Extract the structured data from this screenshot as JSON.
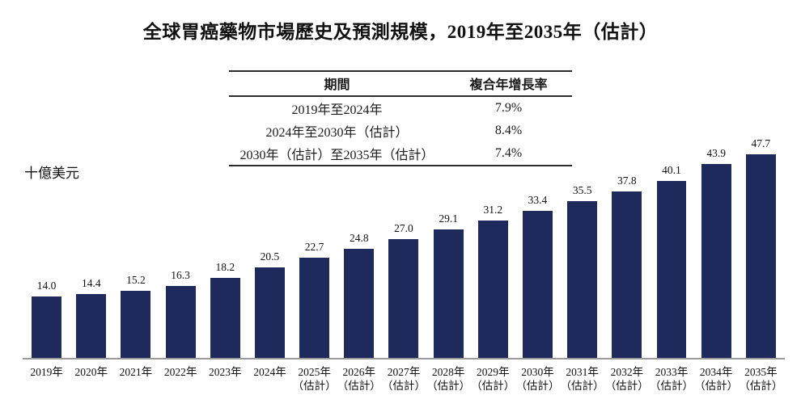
{
  "title": "全球胃癌藥物市場歷史及預測規模，2019年至2035年（估計）",
  "unit_label": "十億美元",
  "cagr_table": {
    "headers": [
      "期間",
      "複合年增長率"
    ],
    "rows": [
      [
        "2019年至2024年",
        "7.9%"
      ],
      [
        "2024年至2030年（估計）",
        "8.4%"
      ],
      [
        "2030年（估計）至2035年（估計）",
        "7.4%"
      ]
    ]
  },
  "chart_data": {
    "type": "bar",
    "title": "全球胃癌藥物市場歷史及預測規模，2019年至2035年（估計）",
    "ylabel": "十億美元",
    "xlabel": "",
    "ylim": [
      0,
      50
    ],
    "grid": false,
    "legend": "none",
    "bar_color": "#1f2a5c",
    "categories": [
      "2019年",
      "2020年",
      "2021年",
      "2022年",
      "2023年",
      "2024年",
      "2025年",
      "2026年",
      "2027年",
      "2028年",
      "2029年",
      "2030年",
      "2031年",
      "2032年",
      "2033年",
      "2034年",
      "2035年"
    ],
    "sub_labels": [
      "",
      "",
      "",
      "",
      "",
      "",
      "（估計）",
      "（估計）",
      "（估計）",
      "（估計）",
      "（估計）",
      "（估計）",
      "（估計）",
      "（估計）",
      "（估計）",
      "（估計）",
      "（估計）"
    ],
    "values": [
      14.0,
      14.4,
      15.2,
      16.3,
      18.2,
      20.5,
      22.7,
      24.8,
      27.0,
      29.1,
      31.2,
      33.4,
      35.5,
      37.8,
      40.1,
      43.9,
      47.7
    ]
  }
}
